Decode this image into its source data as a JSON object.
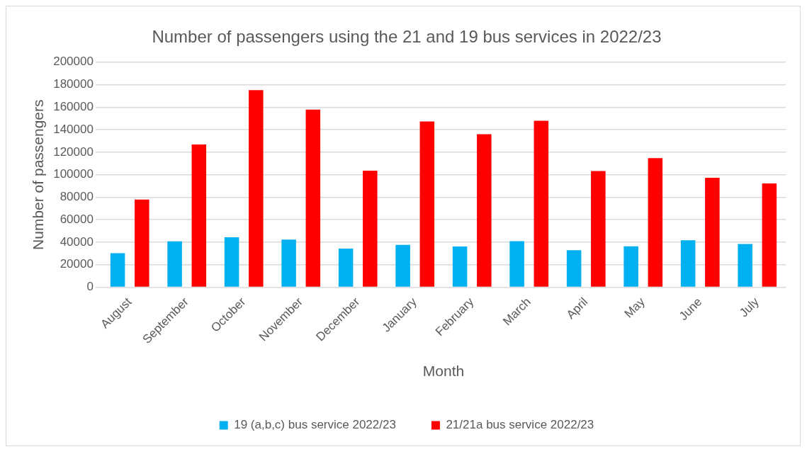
{
  "chart_data": {
    "type": "bar",
    "title": "Number of passengers using the 21 and 19 bus services in 2022/23",
    "xlabel": "Month",
    "ylabel": "Number of passengers",
    "categories": [
      "August",
      "September",
      "October",
      "November",
      "December",
      "January",
      "February",
      "March",
      "April",
      "May",
      "June",
      "July"
    ],
    "series": [
      {
        "name": "19 (a,b,c) bus service 2022/23",
        "color": "#00b0f0",
        "values": [
          30300,
          40800,
          44400,
          42400,
          34400,
          37600,
          36200,
          41000,
          33000,
          36400,
          41700,
          38500
        ]
      },
      {
        "name": "21/21a bus service 2022/23",
        "color": "#ff0000",
        "values": [
          77900,
          126900,
          175200,
          157900,
          103600,
          147400,
          136000,
          148000,
          103200,
          114800,
          97300,
          92300
        ]
      }
    ],
    "ylim": [
      0,
      200000
    ],
    "yticks": [
      0,
      20000,
      40000,
      60000,
      80000,
      100000,
      120000,
      140000,
      160000,
      180000,
      200000
    ],
    "grid": "y",
    "legend": "bottom"
  }
}
